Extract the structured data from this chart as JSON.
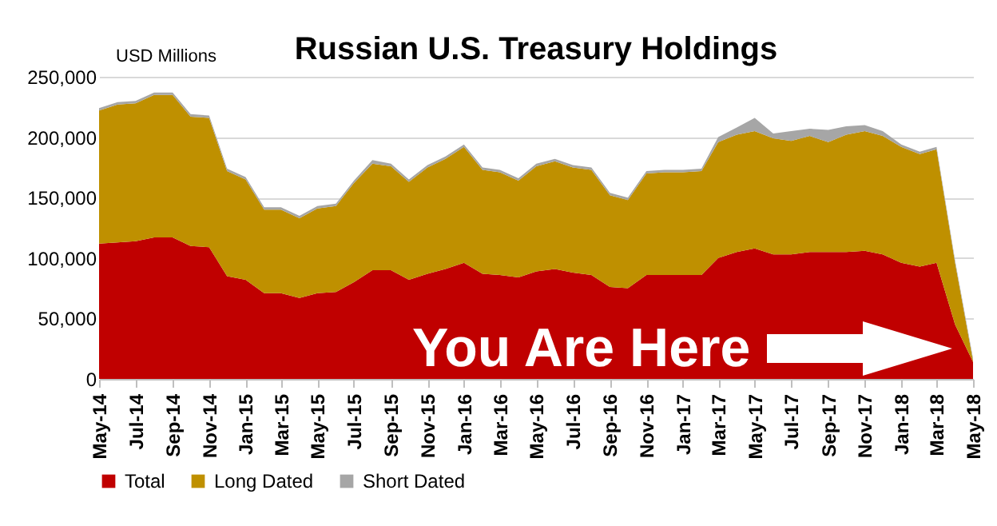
{
  "chart_data": {
    "type": "area",
    "title": "Russian U.S. Treasury Holdings",
    "ylabel": "USD Millions",
    "stacked": true,
    "x": [
      "2014-05",
      "2014-06",
      "2014-07",
      "2014-08",
      "2014-09",
      "2014-10",
      "2014-11",
      "2014-12",
      "2015-01",
      "2015-02",
      "2015-03",
      "2015-04",
      "2015-05",
      "2015-06",
      "2015-07",
      "2015-08",
      "2015-09",
      "2015-10",
      "2015-11",
      "2015-12",
      "2016-01",
      "2016-02",
      "2016-03",
      "2016-04",
      "2016-05",
      "2016-06",
      "2016-07",
      "2016-08",
      "2016-09",
      "2016-10",
      "2016-11",
      "2016-12",
      "2017-01",
      "2017-02",
      "2017-03",
      "2017-04",
      "2017-05",
      "2017-06",
      "2017-07",
      "2017-08",
      "2017-09",
      "2017-10",
      "2017-11",
      "2017-12",
      "2018-01",
      "2018-02",
      "2018-03",
      "2018-04",
      "2018-05"
    ],
    "series": [
      {
        "name": "Total",
        "color": "#c00000",
        "values": [
          112000,
          113000,
          114000,
          117000,
          117000,
          110000,
          109000,
          85000,
          82000,
          71000,
          71000,
          67000,
          71000,
          72000,
          80000,
          90000,
          90000,
          82000,
          87000,
          91000,
          96000,
          87000,
          86000,
          84000,
          89000,
          91000,
          88000,
          86000,
          76000,
          75000,
          86000,
          86000,
          86000,
          86000,
          100000,
          105000,
          108000,
          103000,
          103000,
          105000,
          105000,
          105000,
          106000,
          103000,
          96000,
          93000,
          96000,
          45000,
          14000
        ]
      },
      {
        "name": "Long Dated",
        "color": "#bf9000",
        "values": [
          110000,
          114000,
          114000,
          118000,
          118000,
          107000,
          107000,
          87000,
          83000,
          69000,
          69000,
          66000,
          70000,
          71000,
          82000,
          88000,
          86000,
          81000,
          88000,
          91000,
          96000,
          86000,
          85000,
          80000,
          87000,
          89000,
          87000,
          87000,
          76000,
          73000,
          84000,
          85000,
          85000,
          86000,
          96000,
          97000,
          97000,
          96000,
          94000,
          96000,
          91000,
          97000,
          99000,
          98000,
          96000,
          93000,
          94000,
          51000,
          1000
        ]
      },
      {
        "name": "Short Dated",
        "color": "#a6a6a6",
        "values": [
          2000,
          2000,
          2000,
          2000,
          2000,
          2000,
          2000,
          2000,
          2000,
          2000,
          2000,
          2000,
          2000,
          2000,
          2000,
          3000,
          2000,
          2000,
          2000,
          2000,
          2000,
          2000,
          2000,
          2000,
          2000,
          2000,
          2000,
          2000,
          2000,
          2000,
          2000,
          2000,
          2000,
          2000,
          4000,
          6000,
          11000,
          4000,
          8000,
          6000,
          10000,
          7000,
          5000,
          4000,
          2000,
          2000,
          2000,
          2000,
          2000
        ]
      }
    ],
    "xlim": [
      "2014-05",
      "2018-05"
    ],
    "xticks": [
      {
        "value": "2014-05",
        "label": "May-14"
      },
      {
        "value": "2014-07",
        "label": "Jul-14"
      },
      {
        "value": "2014-09",
        "label": "Sep-14"
      },
      {
        "value": "2014-11",
        "label": "Nov-14"
      },
      {
        "value": "2015-01",
        "label": "Jan-15"
      },
      {
        "value": "2015-03",
        "label": "Mar-15"
      },
      {
        "value": "2015-05",
        "label": "May-15"
      },
      {
        "value": "2015-07",
        "label": "Jul-15"
      },
      {
        "value": "2015-09",
        "label": "Sep-15"
      },
      {
        "value": "2015-11",
        "label": "Nov-15"
      },
      {
        "value": "2016-01",
        "label": "Jan-16"
      },
      {
        "value": "2016-03",
        "label": "Mar-16"
      },
      {
        "value": "2016-05",
        "label": "May-16"
      },
      {
        "value": "2016-07",
        "label": "Jul-16"
      },
      {
        "value": "2016-09",
        "label": "Sep-16"
      },
      {
        "value": "2016-11",
        "label": "Nov-16"
      },
      {
        "value": "2017-01",
        "label": "Jan-17"
      },
      {
        "value": "2017-03",
        "label": "Mar-17"
      },
      {
        "value": "2017-05",
        "label": "May-17"
      },
      {
        "value": "2017-07",
        "label": "Jul-17"
      },
      {
        "value": "2017-09",
        "label": "Sep-17"
      },
      {
        "value": "2017-11",
        "label": "Nov-17"
      },
      {
        "value": "2018-01",
        "label": "Jan-18"
      },
      {
        "value": "2018-03",
        "label": "Mar-18"
      },
      {
        "value": "2018-05",
        "label": "May-18"
      }
    ],
    "ylim": [
      0,
      250000
    ],
    "yticks": [
      {
        "value": 0,
        "label": "0"
      },
      {
        "value": 50000,
        "label": "50,000"
      },
      {
        "value": 100000,
        "label": "100,000"
      },
      {
        "value": 150000,
        "label": "150,000"
      },
      {
        "value": 200000,
        "label": "200,000"
      },
      {
        "value": 250000,
        "label": "250,000"
      }
    ],
    "grid": "y",
    "legend": "bottom",
    "annotations": [
      "You Are Here"
    ]
  }
}
